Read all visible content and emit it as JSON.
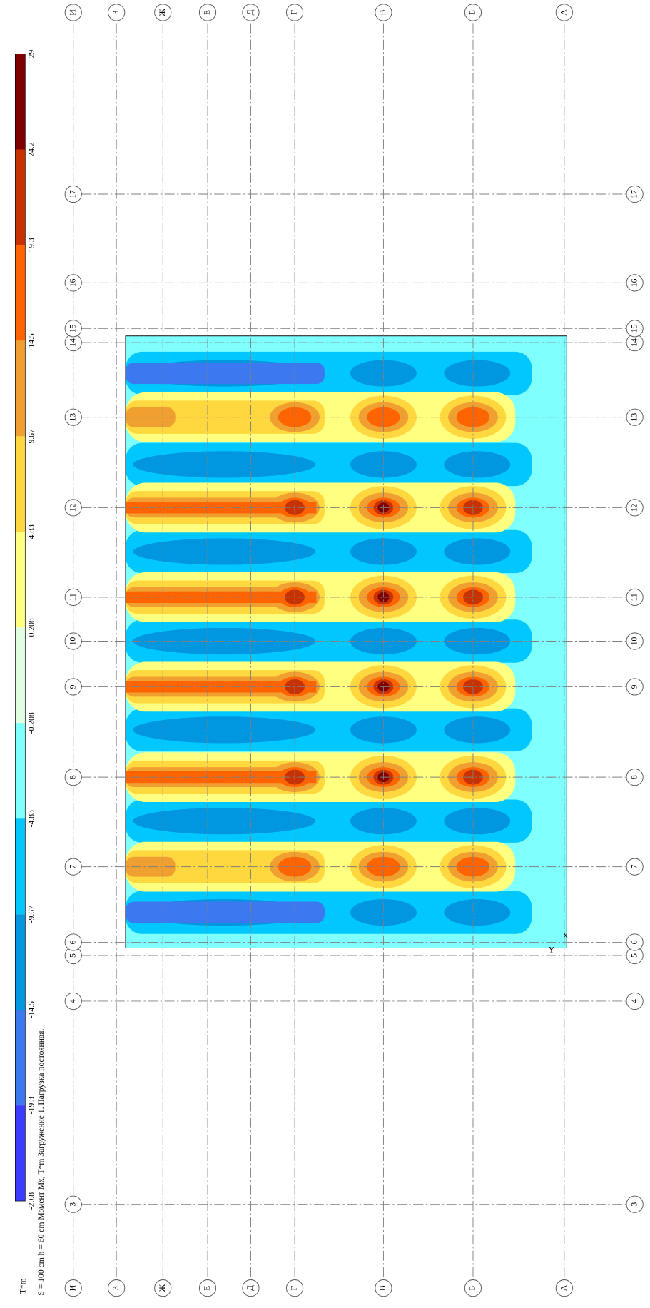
{
  "legend": {
    "unit": "T*m",
    "ticks": [
      "29",
      "24.2",
      "19.3",
      "14.5",
      "9.67",
      "4.83",
      "0.208",
      "-0.208",
      "-4.83",
      "-9.67",
      "-14.5",
      "-19.3",
      "-20.8"
    ]
  },
  "caption": "S = 100 cm  h = 60 cm  Момент Mx, T*m  Загружение 1.  Нагрузка постоянная.",
  "axes": {
    "letters": [
      "И",
      "З",
      "Ж",
      "Е",
      "Д",
      "Г",
      "В",
      "Б",
      "А"
    ],
    "numbers": [
      "3",
      "4",
      "5",
      "6",
      "7",
      "8",
      "9",
      "10",
      "11",
      "12",
      "13",
      "14",
      "15",
      "16",
      "17"
    ]
  },
  "origin": {
    "x": "X",
    "y": "Y"
  }
}
